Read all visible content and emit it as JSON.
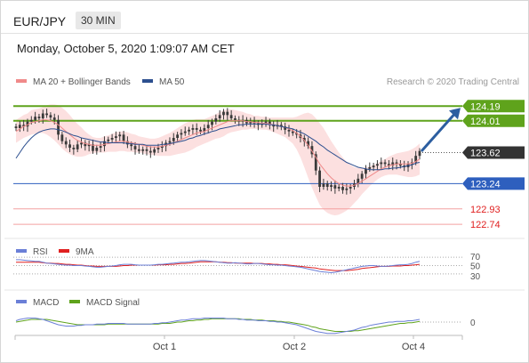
{
  "header": {
    "symbol": "EUR/JPY",
    "interval": "30 MIN"
  },
  "datetime": "Monday, October 5, 2020 1:09:07 AM CET",
  "colors": {
    "ma20": "#f08a8a",
    "ma50": "#2c4f8f",
    "bollinger": "#fbd3d3",
    "green": "#5fa31c",
    "blue": "#2e5fbe",
    "red": "#e02020",
    "dark": "#333333",
    "rsi": "#6b7fd7",
    "rsi9": "#e02020",
    "macd": "#6b7fd7",
    "signal": "#5fa31c",
    "candle": "#3a3a3a",
    "arrow": "#2c5ea0"
  },
  "price_panel": {
    "legend": [
      {
        "name": "MA 20 + Bollinger Bands",
        "color": "#f08a8a"
      },
      {
        "name": "MA 50",
        "color": "#2c4f8f"
      }
    ],
    "credit": "Research © 2020 Trading Central",
    "levels": [
      {
        "label": "124.19",
        "value": 124.19,
        "kind": "green-box"
      },
      {
        "label": "124.01",
        "value": 124.01,
        "kind": "green-box"
      },
      {
        "label": "123.62",
        "value": 123.62,
        "kind": "dark-box"
      },
      {
        "label": "123.24",
        "value": 123.24,
        "kind": "blue-box"
      },
      {
        "label": "122.93",
        "value": 122.93,
        "kind": "red-text"
      },
      {
        "label": "122.74",
        "value": 122.74,
        "kind": "red-text"
      }
    ]
  },
  "rsi_panel": {
    "legend": [
      {
        "name": "RSI",
        "color": "#6b7fd7"
      },
      {
        "name": "9MA",
        "color": "#e02020"
      }
    ],
    "ticks": [
      "70",
      "50",
      "30"
    ]
  },
  "macd_panel": {
    "legend": [
      {
        "name": "MACD",
        "color": "#6b7fd7"
      },
      {
        "name": "MACD Signal",
        "color": "#5fa31c"
      }
    ],
    "ticks": [
      "0"
    ]
  },
  "x_axis": {
    "ticks": [
      "Oct 1",
      "Oct 2",
      "Oct 4"
    ]
  },
  "chart_data": {
    "type": "candlestick",
    "symbol": "EUR/JPY",
    "interval": "30 MIN",
    "ylim": [
      122.6,
      124.4
    ],
    "x_ticks": [
      "Oct 1",
      "Oct 2",
      "Oct 4"
    ],
    "close": [
      123.92,
      123.96,
      123.94,
      124.0,
      124.02,
      124.06,
      124.04,
      124.1,
      124.08,
      124.05,
      124.02,
      123.84,
      123.76,
      123.72,
      123.68,
      123.66,
      123.72,
      123.74,
      123.7,
      123.72,
      123.64,
      123.68,
      123.7,
      123.76,
      123.78,
      123.8,
      123.82,
      123.84,
      123.76,
      123.72,
      123.7,
      123.66,
      123.64,
      123.66,
      123.64,
      123.62,
      123.66,
      123.68,
      123.7,
      123.74,
      123.76,
      123.8,
      123.84,
      123.86,
      123.88,
      123.9,
      123.92,
      123.9,
      123.88,
      123.92,
      123.96,
      124.0,
      124.04,
      124.08,
      124.12,
      124.08,
      124.04,
      124.02,
      124.0,
      124.02,
      123.98,
      124.0,
      123.98,
      123.96,
      123.98,
      124.0,
      123.96,
      123.94,
      123.96,
      123.94,
      123.9,
      123.88,
      123.86,
      123.84,
      123.8,
      123.76,
      123.7,
      123.6,
      123.4,
      123.2,
      123.24,
      123.2,
      123.22,
      123.18,
      123.2,
      123.16,
      123.18,
      123.2,
      123.24,
      123.3,
      123.36,
      123.42,
      123.44,
      123.46,
      123.48,
      123.5,
      123.48,
      123.46,
      123.5,
      123.48,
      123.46,
      123.44,
      123.48,
      123.5,
      123.58,
      123.64
    ],
    "ma20": [
      123.88,
      123.91,
      123.94,
      123.96,
      123.99,
      124.0,
      124.01,
      124.02,
      124.02,
      124.01,
      123.99,
      123.96,
      123.92,
      123.88,
      123.84,
      123.8,
      123.77,
      123.75,
      123.73,
      123.72,
      123.71,
      123.71,
      123.71,
      123.72,
      123.73,
      123.74,
      123.75,
      123.76,
      123.76,
      123.75,
      123.74,
      123.73,
      123.72,
      123.71,
      123.7,
      123.69,
      123.69,
      123.69,
      123.7,
      123.71,
      123.72,
      123.74,
      123.76,
      123.78,
      123.8,
      123.82,
      123.84,
      123.86,
      123.87,
      123.88,
      123.9,
      123.92,
      123.94,
      123.96,
      123.98,
      124.0,
      124.01,
      124.01,
      124.01,
      124.01,
      124.0,
      124.0,
      123.99,
      123.99,
      123.98,
      123.98,
      123.97,
      123.96,
      123.95,
      123.94,
      123.93,
      123.91,
      123.89,
      123.86,
      123.82,
      123.77,
      123.71,
      123.64,
      123.56,
      123.48,
      123.42,
      123.36,
      123.31,
      123.27,
      123.24,
      123.22,
      123.21,
      123.21,
      123.22,
      123.24,
      123.27,
      123.3,
      123.33,
      123.36,
      123.39,
      123.42,
      123.44,
      123.46,
      123.47,
      123.48,
      123.48,
      123.48,
      123.48,
      123.49,
      123.51,
      123.54
    ],
    "ma50": [
      123.55,
      123.62,
      123.69,
      123.75,
      123.8,
      123.84,
      123.87,
      123.89,
      123.9,
      123.91,
      123.91,
      123.9,
      123.89,
      123.87,
      123.85,
      123.83,
      123.82,
      123.8,
      123.79,
      123.78,
      123.77,
      123.76,
      123.75,
      123.75,
      123.74,
      123.74,
      123.74,
      123.74,
      123.74,
      123.73,
      123.73,
      123.72,
      123.72,
      123.72,
      123.71,
      123.71,
      123.71,
      123.71,
      123.72,
      123.72,
      123.73,
      123.74,
      123.75,
      123.76,
      123.77,
      123.79,
      123.8,
      123.82,
      123.83,
      123.85,
      123.86,
      123.88,
      123.89,
      123.91,
      123.92,
      123.93,
      123.94,
      123.95,
      123.96,
      123.96,
      123.97,
      123.97,
      123.97,
      123.97,
      123.97,
      123.97,
      123.96,
      123.96,
      123.95,
      123.94,
      123.93,
      123.92,
      123.91,
      123.89,
      123.87,
      123.85,
      123.82,
      123.79,
      123.76,
      123.72,
      123.69,
      123.65,
      123.62,
      123.59,
      123.56,
      123.53,
      123.5,
      123.48,
      123.46,
      123.44,
      123.43,
      123.42,
      123.41,
      123.41,
      123.41,
      123.41,
      123.42,
      123.42,
      123.43,
      123.43,
      123.44,
      123.45,
      123.46,
      123.47,
      123.49,
      123.5
    ],
    "bb_width": [
      0.14,
      0.14,
      0.14,
      0.14,
      0.15,
      0.15,
      0.15,
      0.16,
      0.18,
      0.2,
      0.22,
      0.24,
      0.25,
      0.25,
      0.24,
      0.22,
      0.2,
      0.18,
      0.15,
      0.12,
      0.1,
      0.09,
      0.09,
      0.1,
      0.1,
      0.11,
      0.12,
      0.12,
      0.12,
      0.12,
      0.11,
      0.11,
      0.1,
      0.1,
      0.1,
      0.1,
      0.1,
      0.11,
      0.12,
      0.13,
      0.14,
      0.15,
      0.16,
      0.17,
      0.18,
      0.18,
      0.18,
      0.17,
      0.16,
      0.15,
      0.15,
      0.15,
      0.15,
      0.16,
      0.16,
      0.15,
      0.14,
      0.13,
      0.12,
      0.11,
      0.1,
      0.09,
      0.08,
      0.08,
      0.08,
      0.08,
      0.08,
      0.09,
      0.1,
      0.11,
      0.12,
      0.14,
      0.16,
      0.2,
      0.26,
      0.33,
      0.4,
      0.45,
      0.48,
      0.5,
      0.5,
      0.48,
      0.45,
      0.42,
      0.38,
      0.34,
      0.3,
      0.26,
      0.22,
      0.19,
      0.16,
      0.14,
      0.12,
      0.11,
      0.1,
      0.1,
      0.1,
      0.11,
      0.12,
      0.13,
      0.14,
      0.15,
      0.16,
      0.17,
      0.18,
      0.19
    ],
    "rsi_ylim": [
      0,
      100
    ],
    "rsi": [
      64,
      64,
      63,
      62,
      61,
      60,
      60,
      58,
      56,
      55,
      54,
      53,
      52,
      51,
      51,
      50,
      50,
      50,
      49,
      48,
      47,
      46,
      46,
      47,
      48,
      49,
      50,
      52,
      53,
      53,
      53,
      52,
      51,
      51,
      51,
      51,
      52,
      53,
      53,
      54,
      55,
      56,
      57,
      58,
      58,
      59,
      60,
      61,
      62,
      62,
      61,
      60,
      59,
      58,
      57,
      56,
      56,
      57,
      56,
      55,
      54,
      54,
      55,
      55,
      54,
      53,
      52,
      52,
      51,
      51,
      50,
      49,
      48,
      47,
      46,
      44,
      42,
      40,
      38,
      36,
      35,
      34,
      33,
      34,
      36,
      38,
      40,
      42,
      44,
      46,
      48,
      49,
      50,
      50,
      49,
      48,
      48,
      49,
      50,
      51,
      52,
      52,
      53,
      55,
      58,
      60
    ],
    "rsi_ma9": [
      58,
      58,
      58,
      58,
      58,
      58,
      58,
      57,
      56,
      56,
      55,
      55,
      54,
      53,
      53,
      52,
      51,
      51,
      50,
      49,
      49,
      48,
      48,
      48,
      48,
      48,
      48,
      49,
      50,
      50,
      51,
      51,
      51,
      51,
      51,
      51,
      51,
      52,
      52,
      52,
      53,
      53,
      54,
      55,
      55,
      56,
      57,
      58,
      59,
      59,
      59,
      59,
      59,
      58,
      58,
      57,
      57,
      56,
      56,
      56,
      56,
      56,
      55,
      55,
      55,
      54,
      54,
      53,
      53,
      52,
      52,
      51,
      50,
      49,
      48,
      47,
      46,
      45,
      44,
      42,
      41,
      40,
      39,
      38,
      38,
      38,
      38,
      39,
      40,
      41,
      43,
      44,
      45,
      46,
      47,
      48,
      48,
      48,
      49,
      49,
      49,
      50,
      50,
      51,
      52,
      53
    ],
    "macd_ylim": [
      -0.4,
      0.4
    ],
    "macd": [
      0.02,
      0.04,
      0.05,
      0.06,
      0.06,
      0.06,
      0.05,
      0.04,
      0.02,
      0.0,
      -0.02,
      -0.04,
      -0.05,
      -0.06,
      -0.06,
      -0.06,
      -0.05,
      -0.05,
      -0.04,
      -0.04,
      -0.04,
      -0.03,
      -0.03,
      -0.03,
      -0.02,
      -0.02,
      -0.02,
      -0.02,
      -0.02,
      -0.03,
      -0.03,
      -0.03,
      -0.03,
      -0.03,
      -0.03,
      -0.03,
      -0.02,
      -0.02,
      -0.01,
      -0.01,
      0.0,
      0.01,
      0.02,
      0.03,
      0.03,
      0.04,
      0.05,
      0.05,
      0.05,
      0.06,
      0.06,
      0.06,
      0.06,
      0.06,
      0.06,
      0.05,
      0.05,
      0.05,
      0.04,
      0.04,
      0.03,
      0.03,
      0.03,
      0.02,
      0.02,
      0.02,
      0.01,
      0.01,
      0.0,
      0.0,
      -0.01,
      -0.02,
      -0.03,
      -0.04,
      -0.06,
      -0.08,
      -0.1,
      -0.12,
      -0.14,
      -0.15,
      -0.16,
      -0.17,
      -0.17,
      -0.17,
      -0.16,
      -0.15,
      -0.14,
      -0.13,
      -0.12,
      -0.1,
      -0.08,
      -0.07,
      -0.05,
      -0.04,
      -0.03,
      -0.02,
      -0.01,
      0.0,
      0.0,
      0.01,
      0.01,
      0.01,
      0.02,
      0.02,
      0.03,
      0.04
    ],
    "macd_signal": [
      0.0,
      0.01,
      0.02,
      0.03,
      0.04,
      0.04,
      0.04,
      0.04,
      0.04,
      0.03,
      0.02,
      0.01,
      0.0,
      -0.01,
      -0.02,
      -0.03,
      -0.04,
      -0.04,
      -0.04,
      -0.04,
      -0.04,
      -0.04,
      -0.04,
      -0.04,
      -0.03,
      -0.03,
      -0.03,
      -0.03,
      -0.03,
      -0.03,
      -0.03,
      -0.03,
      -0.03,
      -0.03,
      -0.03,
      -0.03,
      -0.03,
      -0.03,
      -0.02,
      -0.02,
      -0.02,
      -0.01,
      0.0,
      0.0,
      0.01,
      0.02,
      0.02,
      0.03,
      0.03,
      0.04,
      0.04,
      0.05,
      0.05,
      0.05,
      0.05,
      0.05,
      0.05,
      0.05,
      0.05,
      0.04,
      0.04,
      0.04,
      0.03,
      0.03,
      0.03,
      0.02,
      0.02,
      0.02,
      0.01,
      0.01,
      0.0,
      0.0,
      -0.01,
      -0.02,
      -0.03,
      -0.04,
      -0.05,
      -0.07,
      -0.08,
      -0.1,
      -0.11,
      -0.12,
      -0.13,
      -0.14,
      -0.14,
      -0.14,
      -0.14,
      -0.14,
      -0.13,
      -0.13,
      -0.12,
      -0.11,
      -0.1,
      -0.09,
      -0.08,
      -0.07,
      -0.06,
      -0.05,
      -0.04,
      -0.03,
      -0.02,
      -0.02,
      -0.01,
      -0.01,
      0.0,
      0.01
    ]
  }
}
